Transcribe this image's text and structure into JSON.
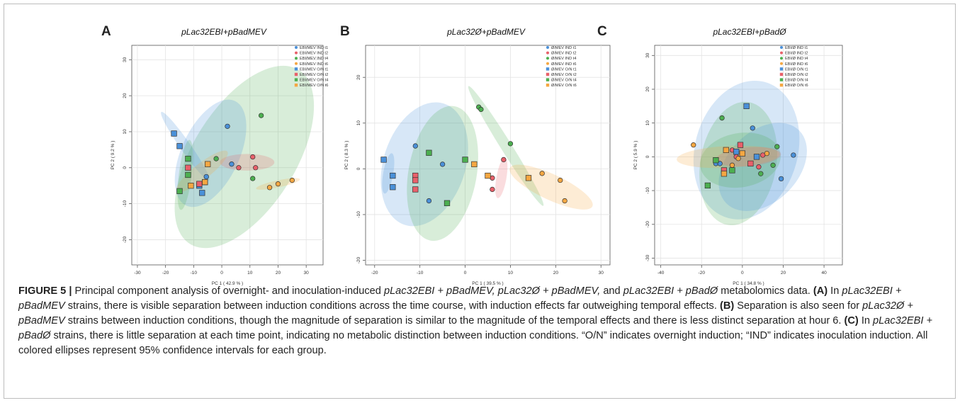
{
  "figure": {
    "label": "FIGURE 5 |",
    "caption_parts": [
      {
        "t": "Principal component analysis of overnight- and inoculation-induced "
      },
      {
        "t": "pLac32EBI + pBadMEV, pLac32Ø + pBadMEV,",
        "i": true
      },
      {
        "t": " and "
      },
      {
        "t": "pLac32EBI + pBadØ",
        "i": true
      },
      {
        "t": " metabolomics data. "
      },
      {
        "t": "(A)",
        "b": true
      },
      {
        "t": " In "
      },
      {
        "t": "pLac32EBI + pBadMEV",
        "i": true
      },
      {
        "t": " strains, there is visible separation between induction conditions across the time course, with induction effects far outweighing temporal effects. "
      },
      {
        "t": "(B)",
        "b": true
      },
      {
        "t": " Separation is also seen for "
      },
      {
        "t": "pLac32Ø + pBadMEV",
        "i": true
      },
      {
        "t": " strains between induction conditions, though the magnitude of separation is similar to the magnitude of the temporal effects and there is less distinct separation at hour 6. "
      },
      {
        "t": "(C)",
        "b": true
      },
      {
        "t": " In "
      },
      {
        "t": "pLac32EBI + pBadØ",
        "i": true
      },
      {
        "t": " strains, there is little separation at each time point, indicating no metabolic distinction between induction conditions. “O/N” indicates overnight induction; “IND” indicates inoculation induction. All colored ellipses represent 95% confidence intervals for each group."
      }
    ]
  },
  "group_colors": {
    "t1": "#4a90d9",
    "t2": "#e8606a",
    "t4": "#4caf50",
    "t6": "#f5a742"
  },
  "chart_data": [
    {
      "type": "scatter",
      "panel": "A",
      "title": "pLac32EBI+pBadMEV",
      "xlabel": "PC 1 ( 42.9 % )",
      "ylabel": "PC 2 ( 9.2 % )",
      "xlim": [
        -32,
        36
      ],
      "ylim": [
        -27,
        34
      ],
      "xticks": [
        -30,
        -20,
        -10,
        0,
        10,
        20,
        30
      ],
      "yticks": [
        -20,
        -10,
        0,
        10,
        20,
        30
      ],
      "legend": [
        "EBI/MEV IND t1",
        "EBI/MEV IND t2",
        "EBI/MEV IND t4",
        "EBI/MEV IND t6",
        "EBI/MEV O/N t1",
        "EBI/MEV O/N t2",
        "EBI/MEV O/N t4",
        "EBI/MEV O/N t6"
      ],
      "legend_position": "top-right",
      "series": [
        {
          "group": "t1",
          "shape": "circle",
          "points": [
            [
              2,
              11.5
            ],
            [
              3.5,
              1
            ],
            [
              -5.5,
              -2.5
            ]
          ]
        },
        {
          "group": "t2",
          "shape": "circle",
          "points": [
            [
              6,
              0
            ],
            [
              11,
              3
            ],
            [
              12,
              0
            ]
          ]
        },
        {
          "group": "t4",
          "shape": "circle",
          "points": [
            [
              -2,
              2.5
            ],
            [
              14,
              14.5
            ],
            [
              11,
              -3
            ]
          ]
        },
        {
          "group": "t6",
          "shape": "circle",
          "points": [
            [
              17,
              -5.5
            ],
            [
              20,
              -4.5
            ],
            [
              25,
              -3.5
            ]
          ]
        },
        {
          "group": "t1",
          "shape": "square",
          "points": [
            [
              -17,
              9.5
            ],
            [
              -15,
              6
            ],
            [
              -8,
              -5
            ],
            [
              -7,
              -7
            ]
          ]
        },
        {
          "group": "t2",
          "shape": "square",
          "points": [
            [
              -12,
              0
            ],
            [
              -8,
              -4.5
            ],
            [
              -6,
              -4
            ]
          ]
        },
        {
          "group": "t4",
          "shape": "square",
          "points": [
            [
              -12,
              2.5
            ],
            [
              -12,
              -2
            ],
            [
              -15,
              -6.5
            ]
          ]
        },
        {
          "group": "t6",
          "shape": "square",
          "points": [
            [
              -5,
              1
            ],
            [
              -11,
              -5
            ],
            [
              -6,
              -4
            ]
          ]
        }
      ],
      "ellipses": [
        {
          "group": "t4",
          "cx": 8,
          "cy": 3,
          "rx": 32,
          "ry": 16,
          "angle": 58
        },
        {
          "group": "t1",
          "cx": -4,
          "cy": 4,
          "rx": 18,
          "ry": 9,
          "angle": 65
        },
        {
          "group": "t1",
          "cx": -13,
          "cy": 6,
          "rx": 13,
          "ry": 1.6,
          "angle": -55
        },
        {
          "group": "t2",
          "cx": 9,
          "cy": 1.5,
          "rx": 8.5,
          "ry": 2.6,
          "angle": 0
        },
        {
          "group": "t6",
          "cx": -7,
          "cy": -1,
          "rx": 10,
          "ry": 2.5,
          "angle": 38
        },
        {
          "group": "t6",
          "cx": 20,
          "cy": -4.5,
          "rx": 7,
          "ry": 1.1,
          "angle": 12
        },
        {
          "group": "t4",
          "cx": -13,
          "cy": -2,
          "rx": 11,
          "ry": 2,
          "angle": 83
        }
      ]
    },
    {
      "type": "scatter",
      "panel": "B",
      "title": "pLac32Ø+pBadMEV",
      "xlabel": "PC 1 ( 39.5 % )",
      "ylabel": "PC 2 ( 8.3 % )",
      "xlim": [
        -22,
        32
      ],
      "ylim": [
        -21,
        27
      ],
      "xticks": [
        -20,
        -10,
        0,
        10,
        20,
        30
      ],
      "yticks": [
        -20,
        -10,
        0,
        10,
        20
      ],
      "legend": [
        "Ø/MEV IND t1",
        "Ø/MEV IND t2",
        "Ø/MEV IND t4",
        "Ø/MEV IND t6",
        "Ø/MEV O/N t1",
        "Ø/MEV O/N t2",
        "Ø/MEV O/N t4",
        "Ø/MEV O/N t6"
      ],
      "legend_position": "top-right",
      "series": [
        {
          "group": "t1",
          "shape": "circle",
          "points": [
            [
              -11,
              5
            ],
            [
              -5,
              1
            ],
            [
              -8,
              -7
            ]
          ]
        },
        {
          "group": "t2",
          "shape": "circle",
          "points": [
            [
              8.5,
              2
            ],
            [
              6,
              -2
            ],
            [
              6,
              -4.5
            ]
          ]
        },
        {
          "group": "t4",
          "shape": "circle",
          "points": [
            [
              3,
              13.5
            ],
            [
              3.5,
              13
            ],
            [
              10,
              5.5
            ]
          ]
        },
        {
          "group": "t6",
          "shape": "circle",
          "points": [
            [
              17,
              -1
            ],
            [
              21,
              -2.5
            ],
            [
              22,
              -7
            ]
          ]
        },
        {
          "group": "t1",
          "shape": "square",
          "points": [
            [
              -18,
              2
            ],
            [
              -16,
              -1.5
            ],
            [
              -16,
              -4
            ]
          ]
        },
        {
          "group": "t2",
          "shape": "square",
          "points": [
            [
              -11,
              -1.5
            ],
            [
              -11,
              -2.5
            ],
            [
              -11,
              -4.5
            ]
          ]
        },
        {
          "group": "t4",
          "shape": "square",
          "points": [
            [
              -8,
              3.5
            ],
            [
              0,
              2
            ],
            [
              -4,
              -7.5
            ]
          ]
        },
        {
          "group": "t6",
          "shape": "square",
          "points": [
            [
              2,
              1
            ],
            [
              5,
              -1.5
            ],
            [
              14,
              -2
            ]
          ]
        }
      ],
      "ellipses": [
        {
          "group": "t1",
          "cx": -9,
          "cy": 1,
          "rx": 14,
          "ry": 9,
          "angle": 72
        },
        {
          "group": "t4",
          "cx": -5,
          "cy": -1,
          "rx": 15,
          "ry": 7.5,
          "angle": 80
        },
        {
          "group": "t4",
          "cx": 9,
          "cy": 5,
          "rx": 15.5,
          "ry": 1.2,
          "angle": -58
        },
        {
          "group": "t6",
          "cx": 19,
          "cy": -4,
          "rx": 10,
          "ry": 2.8,
          "angle": -25
        },
        {
          "group": "t2",
          "cx": 8,
          "cy": -2,
          "rx": 4.5,
          "ry": 1.1,
          "angle": 80
        },
        {
          "group": "t1",
          "cx": -17,
          "cy": -1,
          "rx": 4.5,
          "ry": 1.1,
          "angle": 80
        }
      ]
    },
    {
      "type": "scatter",
      "panel": "C",
      "title": "pLac32EBI+pBadØ",
      "xlabel": "PC 1 ( 34.8 % )",
      "ylabel": "PC 2 ( 5.9 % )",
      "xlim": [
        -43,
        49
      ],
      "ylim": [
        -32,
        33
      ],
      "xticks": [
        -40,
        -20,
        0,
        20,
        40
      ],
      "yticks": [
        -30,
        -20,
        -10,
        0,
        10,
        20,
        30
      ],
      "legend": [
        "EBI/Ø IND t1",
        "EBI/Ø IND t2",
        "EBI/Ø IND t4",
        "EBI/Ø IND t6",
        "EBI/Ø O/N t1",
        "EBI/Ø O/N t2",
        "EBI/Ø O/N t4",
        "EBI/Ø O/N t6"
      ],
      "legend_position": "top-right",
      "series": [
        {
          "group": "t1",
          "shape": "circle",
          "points": [
            [
              5,
              8.5
            ],
            [
              25,
              0.5
            ],
            [
              19,
              -6.5
            ],
            [
              -13,
              -2
            ],
            [
              -11,
              -2
            ]
          ]
        },
        {
          "group": "t2",
          "shape": "circle",
          "points": [
            [
              -5,
              2
            ],
            [
              -3,
              0
            ],
            [
              8,
              -3
            ],
            [
              10,
              0.5
            ]
          ]
        },
        {
          "group": "t4",
          "shape": "circle",
          "points": [
            [
              -10,
              11.5
            ],
            [
              17,
              3
            ],
            [
              15,
              -2.5
            ],
            [
              9,
              -5
            ]
          ]
        },
        {
          "group": "t6",
          "shape": "circle",
          "points": [
            [
              -24,
              3.5
            ],
            [
              -2,
              -0.5
            ],
            [
              -5,
              -2.5
            ],
            [
              12,
              1
            ]
          ]
        },
        {
          "group": "t1",
          "shape": "square",
          "points": [
            [
              2,
              15
            ],
            [
              -3,
              1.5
            ],
            [
              7,
              0
            ]
          ]
        },
        {
          "group": "t2",
          "shape": "square",
          "points": [
            [
              -1,
              3.5
            ],
            [
              4,
              -2
            ],
            [
              -9,
              -4
            ]
          ]
        },
        {
          "group": "t4",
          "shape": "square",
          "points": [
            [
              -17,
              -8.5
            ],
            [
              -13,
              -1
            ],
            [
              -5,
              -4
            ]
          ]
        },
        {
          "group": "t6",
          "shape": "square",
          "points": [
            [
              0,
              1
            ],
            [
              -9,
              -5
            ],
            [
              -8,
              2
            ]
          ]
        }
      ],
      "ellipses": [
        {
          "group": "t1",
          "cx": 2,
          "cy": 2,
          "rx": 26,
          "ry": 19,
          "angle": 75
        },
        {
          "group": "t4",
          "cx": -2,
          "cy": -2,
          "rx": 23,
          "ry": 14,
          "angle": 80
        },
        {
          "group": "t1",
          "cx": 10,
          "cy": -3,
          "rx": 19,
          "ry": 13,
          "angle": 45
        },
        {
          "group": "t4",
          "cx": -1,
          "cy": -1,
          "rx": 15,
          "ry": 10,
          "angle": 10
        },
        {
          "group": "t6",
          "cx": -7,
          "cy": 0,
          "rx": 19,
          "ry": 4,
          "angle": 3
        },
        {
          "group": "t2",
          "cx": 3,
          "cy": 0,
          "rx": 12,
          "ry": 3.5,
          "angle": 5
        }
      ]
    }
  ]
}
